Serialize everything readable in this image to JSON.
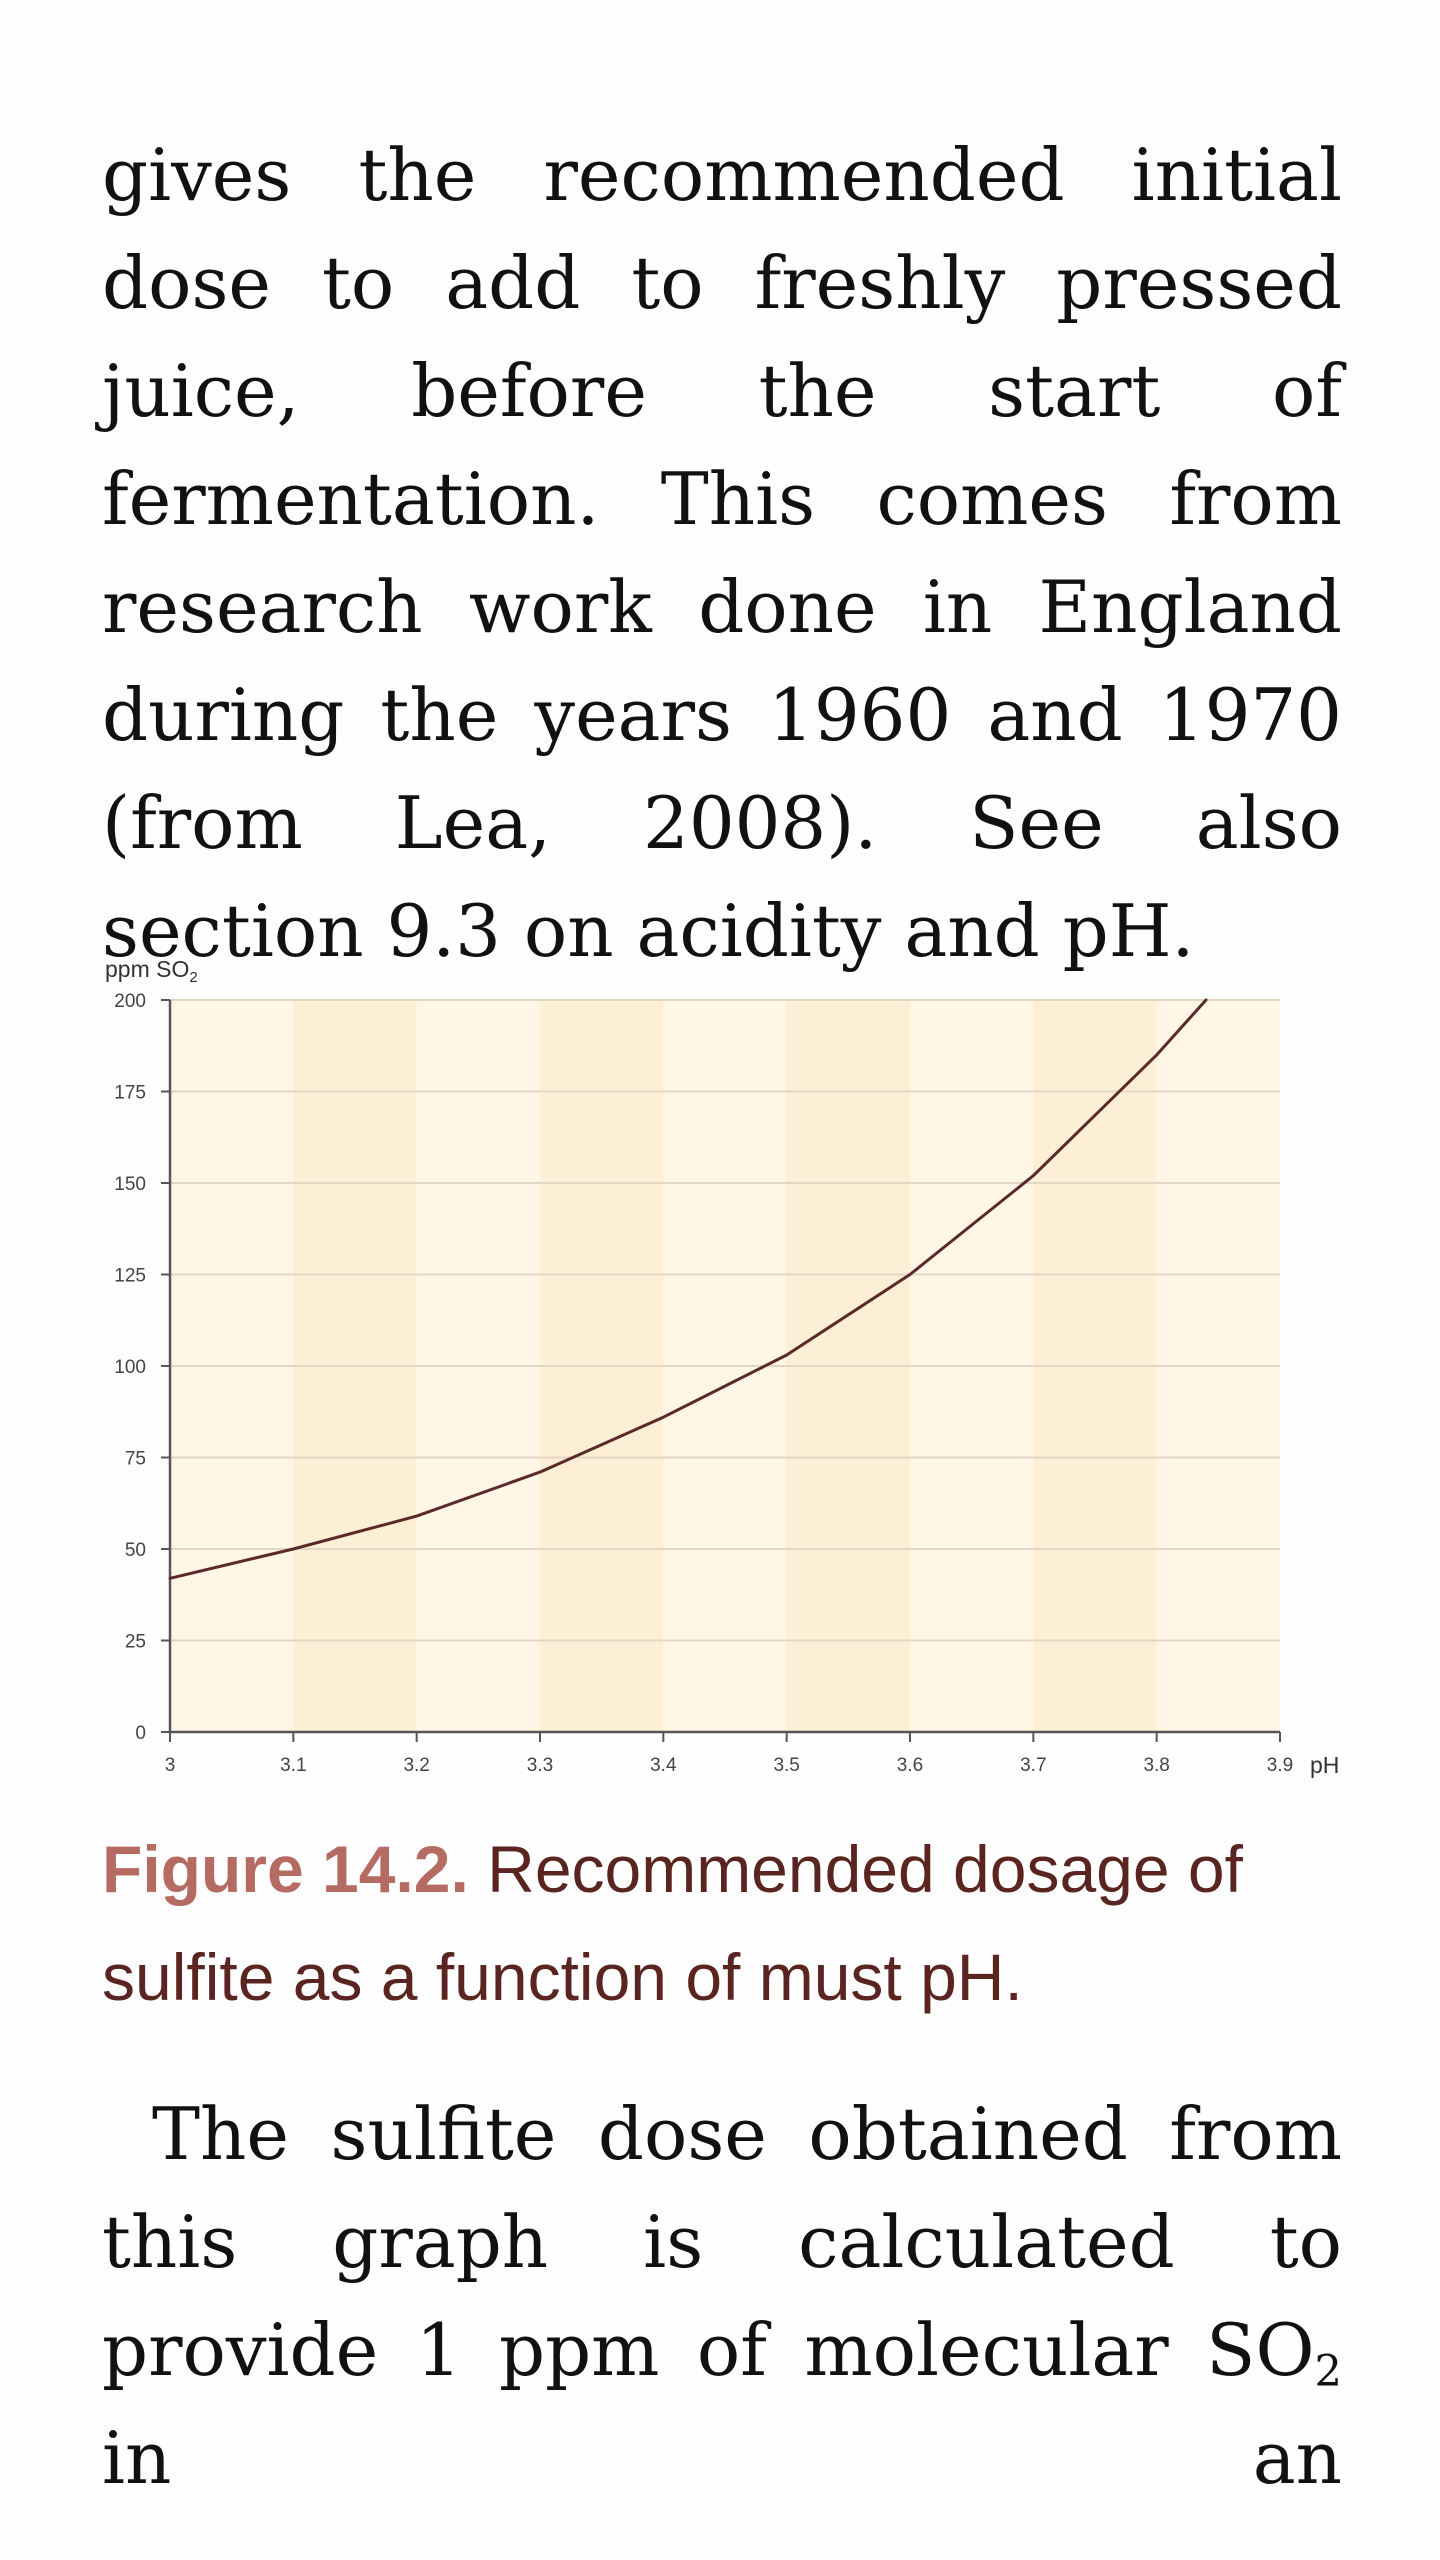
{
  "paragraph_top": "gives the recommended initial dose to add to freshly pressed juice, before the start of fermentation. This comes from research work done in England during the years 1960 and 1970 (from Lea, 2008). See also section 9.3 on acidity and pH.",
  "figure": {
    "label": "Figure 14.2.",
    "caption": " Recommended dosage of sulfite as a function of must pH."
  },
  "paragraph_bottom": {
    "text": "The sulfite dose obtained from this graph is calculated to provide 1 ppm of molecular SO",
    "subscript": "2",
    "tail": " in an"
  },
  "chart_data": {
    "type": "line",
    "ylabel": "ppm SO",
    "ylabel_subscript": "2",
    "xlabel": "pH",
    "xlim": [
      3.0,
      3.9
    ],
    "ylim": [
      0,
      200
    ],
    "x_ticks": [
      "3",
      "3.1",
      "3.2",
      "3.3",
      "3.4",
      "3.5",
      "3.6",
      "3.7",
      "3.8",
      "3.9"
    ],
    "y_ticks": [
      "0",
      "25",
      "50",
      "75",
      "100",
      "125",
      "150",
      "175",
      "200"
    ],
    "grid": true,
    "alternating_bands": true,
    "colors": {
      "band_light": "#fff6e6",
      "band_dark": "#fdeed6",
      "grid": "#e3d7c4",
      "line": "#5a2a2a",
      "axis": "#555555"
    },
    "series": [
      {
        "x": [
          3.0,
          3.1,
          3.2,
          3.3,
          3.4,
          3.5,
          3.6,
          3.7,
          3.8,
          3.84
        ],
        "y": [
          42,
          50,
          59,
          71,
          86,
          103,
          125,
          152,
          185,
          200
        ]
      }
    ]
  }
}
